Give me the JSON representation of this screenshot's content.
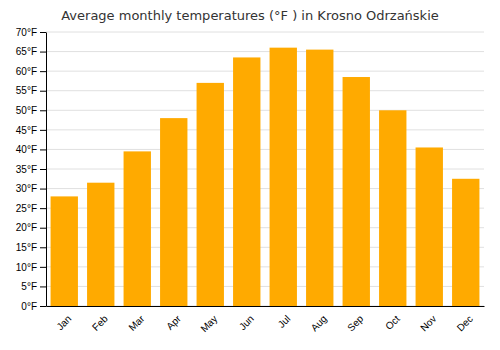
{
  "chart_data": {
    "type": "bar",
    "title": "Average monthly temperatures (°F ) in Krosno Odrzańskie",
    "categories": [
      "Jan",
      "Feb",
      "Mar",
      "Apr",
      "May",
      "Jun",
      "Jul",
      "Aug",
      "Sep",
      "Oct",
      "Nov",
      "Dec"
    ],
    "values": [
      28.0,
      31.5,
      39.5,
      48.0,
      57.0,
      63.5,
      66.0,
      65.5,
      58.5,
      50.0,
      40.5,
      32.5
    ],
    "color": "#FFAA00",
    "ylim": [
      0,
      70
    ],
    "yticks": [
      {
        "value": 0,
        "label": "0°F"
      },
      {
        "value": 5,
        "label": "5°F"
      },
      {
        "value": 10,
        "label": "10°F"
      },
      {
        "value": 15,
        "label": "15°F"
      },
      {
        "value": 20,
        "label": "20°F"
      },
      {
        "value": 25,
        "label": "25°F"
      },
      {
        "value": 30,
        "label": "30°F"
      },
      {
        "value": 35,
        "label": "35°F"
      },
      {
        "value": 40,
        "label": "40°F"
      },
      {
        "value": 45,
        "label": "45°F"
      },
      {
        "value": 50,
        "label": "50°F"
      },
      {
        "value": 55,
        "label": "55°F"
      },
      {
        "value": 60,
        "label": "60°F"
      },
      {
        "value": 65,
        "label": "65°F"
      },
      {
        "value": 70,
        "label": "70°F"
      }
    ],
    "grid": true
  }
}
